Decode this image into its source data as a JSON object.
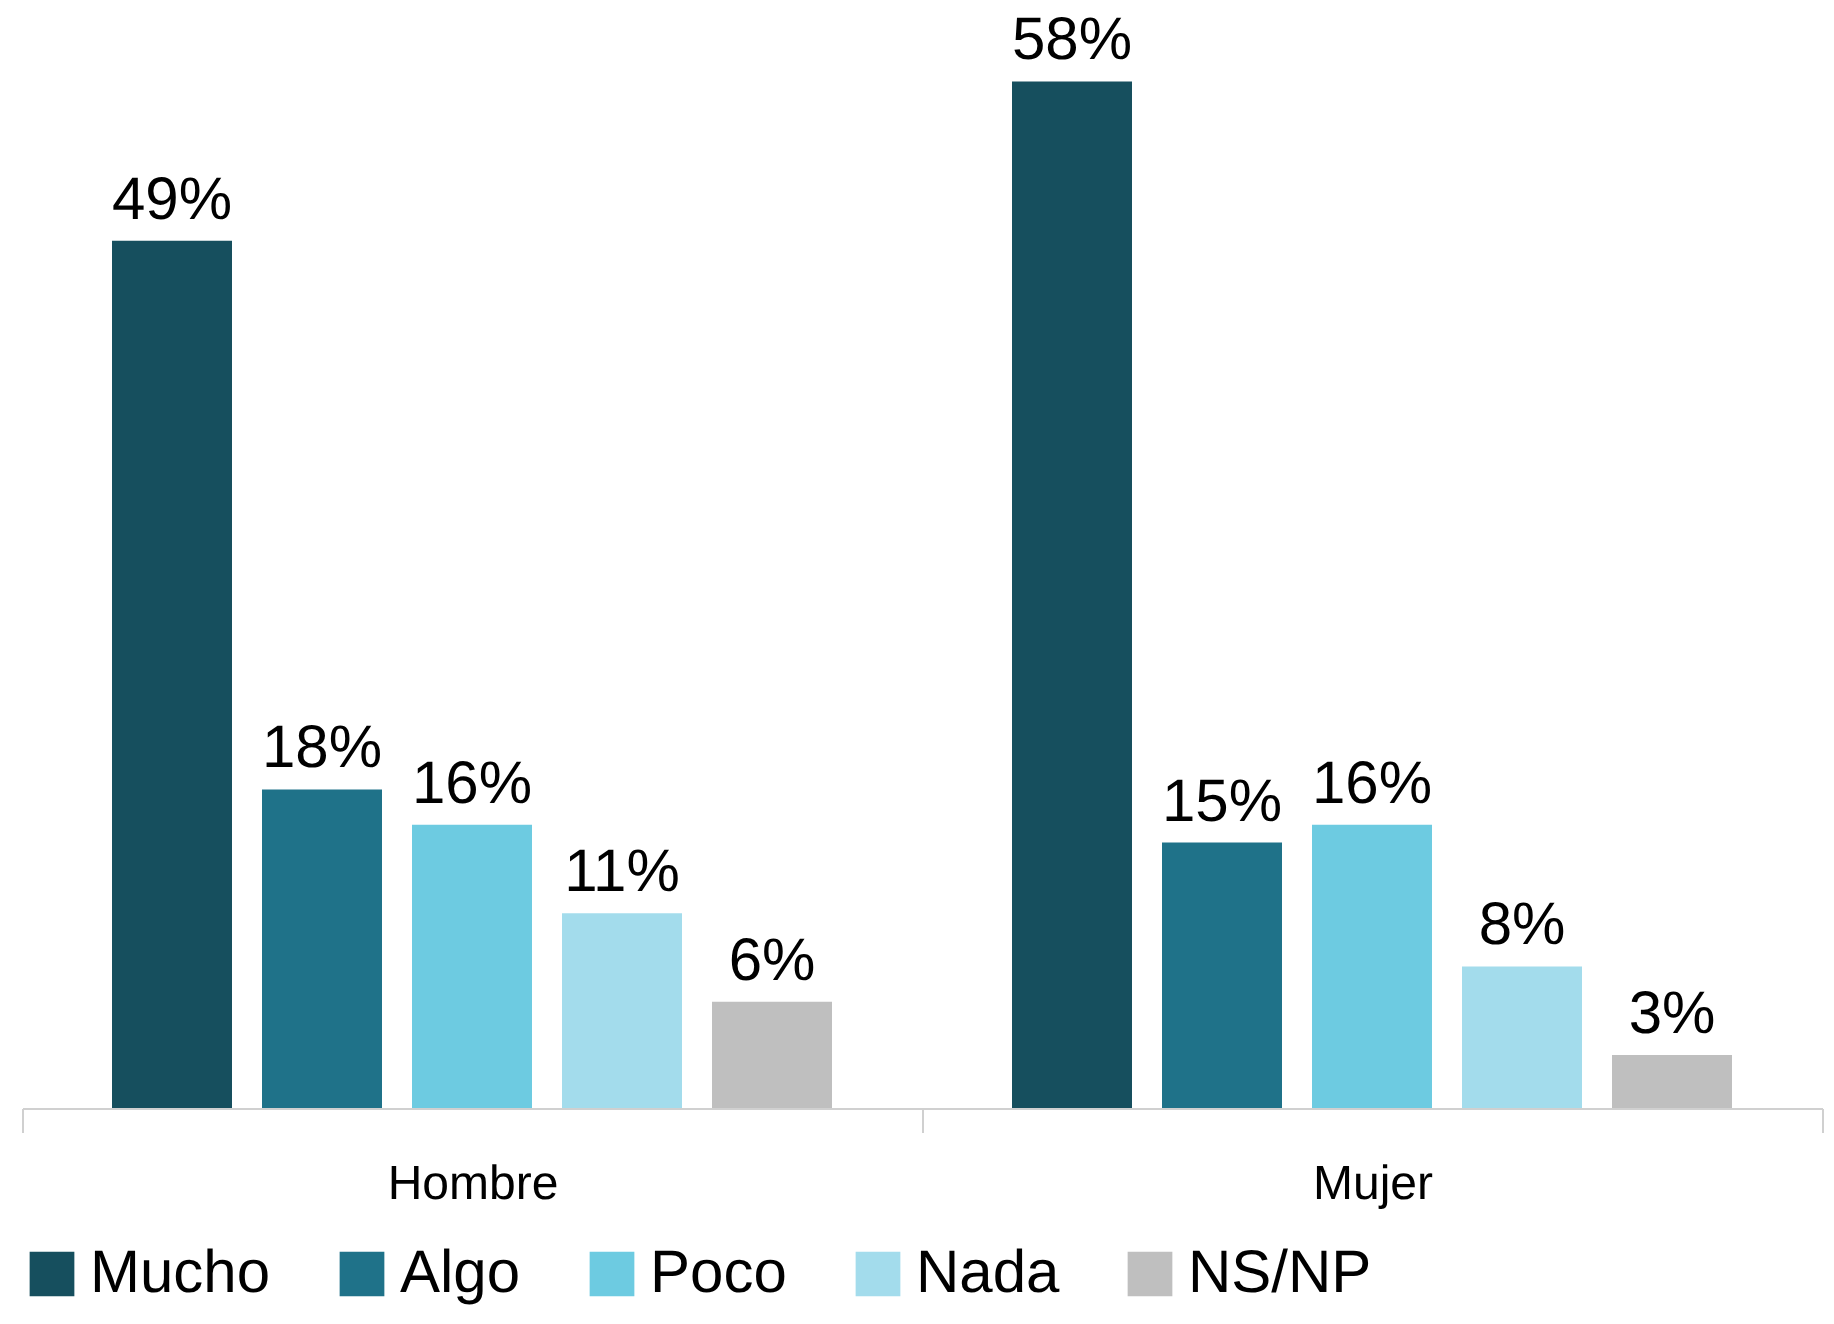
{
  "chart_data": {
    "type": "bar",
    "categories": [
      "Hombre",
      "Mujer"
    ],
    "series": [
      {
        "name": "Mucho",
        "color": "#164f5e",
        "values": [
          49,
          58
        ],
        "value_labels": [
          "49%",
          "58%"
        ]
      },
      {
        "name": "Algo",
        "color": "#1f7289",
        "values": [
          18,
          15
        ],
        "value_labels": [
          "18%",
          "15%"
        ]
      },
      {
        "name": "Poco",
        "color": "#6dcbe1",
        "values": [
          16,
          16
        ],
        "value_labels": [
          "16%",
          "16%"
        ]
      },
      {
        "name": "Nada",
        "color": "#a3dcec",
        "values": [
          11,
          8
        ],
        "value_labels": [
          "11%",
          "8%"
        ]
      },
      {
        "name": "NS/NP",
        "color": "#bfbfbf",
        "values": [
          6,
          3
        ],
        "value_labels": [
          "6%",
          "3%"
        ]
      }
    ],
    "legend": "bottom",
    "grid": false
  }
}
